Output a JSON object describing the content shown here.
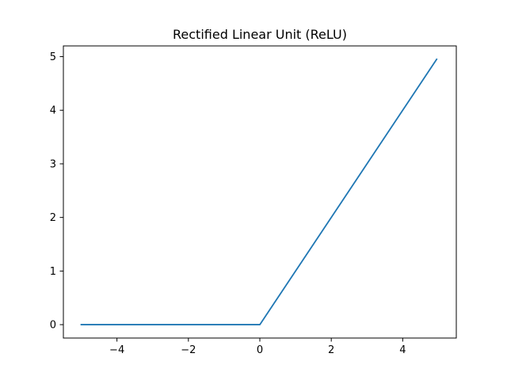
{
  "chart_data": {
    "type": "line",
    "title": "Rectified Linear Unit (ReLU)",
    "xlabel": "",
    "ylabel": "",
    "xlim": [
      -5.5,
      5.5
    ],
    "ylim": [
      -0.25,
      5.2
    ],
    "xticks": [
      -4,
      -2,
      0,
      2,
      4
    ],
    "xtick_labels": [
      "−4",
      "−2",
      "0",
      "2",
      "4"
    ],
    "yticks": [
      0,
      1,
      2,
      3,
      4,
      5
    ],
    "ytick_labels": [
      "0",
      "1",
      "2",
      "3",
      "4",
      "5"
    ],
    "grid": false,
    "series": [
      {
        "color": "#1f77b4",
        "x": [
          -5,
          0,
          4.95
        ],
        "y": [
          0,
          0,
          4.95
        ]
      }
    ]
  }
}
